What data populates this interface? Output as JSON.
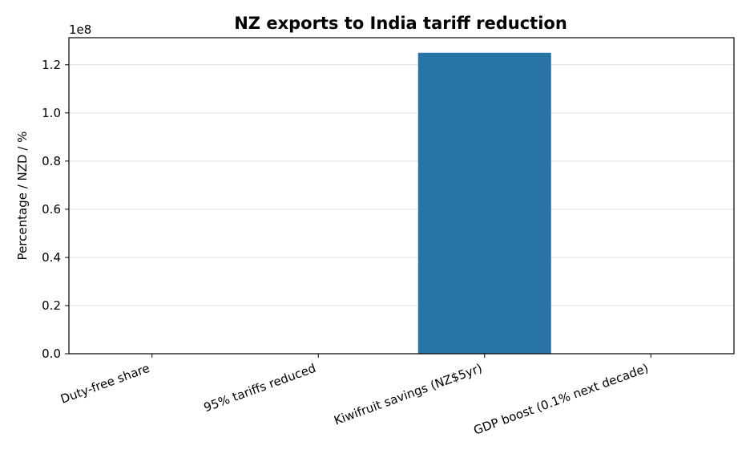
{
  "chart_data": {
    "type": "bar",
    "title": "NZ exports to India tariff reduction",
    "xlabel": "",
    "ylabel": "Percentage / NZD / %",
    "offset_text": "1e8",
    "categories": [
      "Duty-free share",
      "95% tariffs reduced",
      "Kiwifruit savings (NZ$5yr)",
      "GDP boost (0.1% next decade)"
    ],
    "values": [
      57,
      95,
      125000000,
      0.1
    ],
    "ylim": [
      0,
      131250000
    ],
    "y_ticks": [
      0,
      20000000,
      40000000,
      60000000,
      80000000,
      100000000,
      120000000
    ],
    "y_tick_labels": [
      "0.0",
      "0.2",
      "0.4",
      "0.6",
      "0.8",
      "1.0",
      "1.2"
    ],
    "grid": true,
    "bar_color": "#2874a7"
  }
}
